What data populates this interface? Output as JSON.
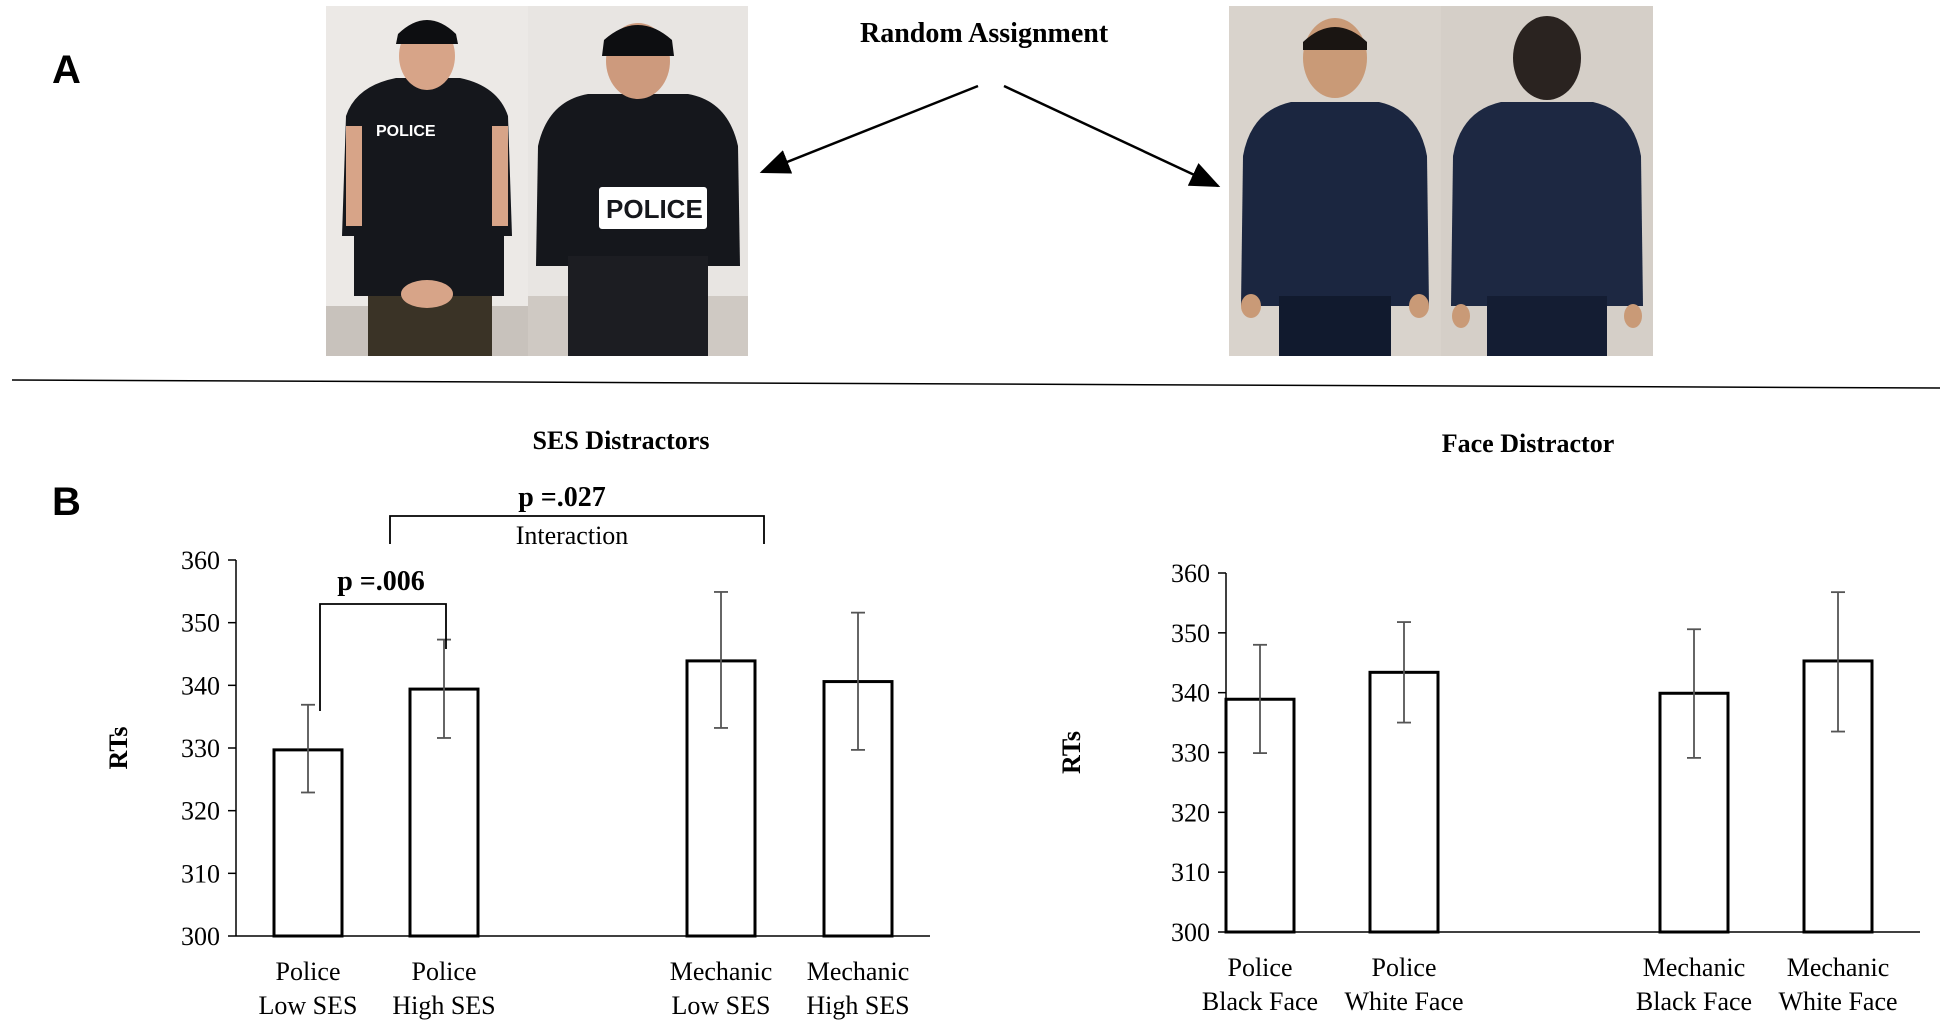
{
  "panel_a": {
    "label": "A",
    "heading": "Random Assignment",
    "photos": [
      {
        "name": "police-front",
        "badge": "POLICE",
        "uniform": "#15171c",
        "skin": "#d7a488",
        "bg": "#ece9e6"
      },
      {
        "name": "police-back",
        "badge": "POLICE",
        "uniform": "#15171c",
        "skin": "#cd9a7d",
        "bg": "#e8e5e2"
      },
      {
        "name": "mechanic-front",
        "badge": "",
        "uniform": "#1b2640",
        "skin": "#c99a77",
        "bg": "#d9d3cc"
      },
      {
        "name": "mechanic-back",
        "badge": "",
        "uniform": "#1d2842",
        "skin": "#2a2320",
        "bg": "#d5cfc8"
      }
    ]
  },
  "panel_b": {
    "label": "B"
  },
  "chart_data": [
    {
      "type": "bar",
      "title": "SES Distractors",
      "ylabel": "RTs",
      "ylim": [
        300,
        360
      ],
      "yticks": [
        300,
        310,
        320,
        330,
        340,
        350,
        360
      ],
      "categories": [
        [
          "Police",
          "Low SES"
        ],
        [
          "Police",
          "High SES"
        ],
        [
          "Mechanic",
          "Low SES"
        ],
        [
          "Mechanic",
          "High SES"
        ]
      ],
      "values": [
        329.7,
        339.4,
        343.9,
        340.6
      ],
      "error_low": [
        322.9,
        331.6,
        333.2,
        329.7
      ],
      "error_high": [
        336.9,
        347.3,
        354.9,
        351.6
      ],
      "annotations": [
        {
          "text": "p =.006",
          "between": [
            0,
            1
          ]
        },
        {
          "text": "p =.027",
          "sub": "Interaction",
          "between": [
            0.5,
            2.5
          ]
        }
      ]
    },
    {
      "type": "bar",
      "title": "Face Distractor",
      "ylabel": "RTs",
      "ylim": [
        300,
        360
      ],
      "yticks": [
        300,
        310,
        320,
        330,
        340,
        350,
        360
      ],
      "categories": [
        [
          "Police",
          "Black Face"
        ],
        [
          "Police",
          "White Face"
        ],
        [
          "Mechanic",
          "Black Face"
        ],
        [
          "Mechanic",
          "White Face"
        ]
      ],
      "values": [
        338.9,
        343.4,
        339.9,
        345.3
      ],
      "error_low": [
        329.9,
        335.0,
        329.1,
        333.5
      ],
      "error_high": [
        348.0,
        351.8,
        350.6,
        356.8
      ]
    }
  ]
}
